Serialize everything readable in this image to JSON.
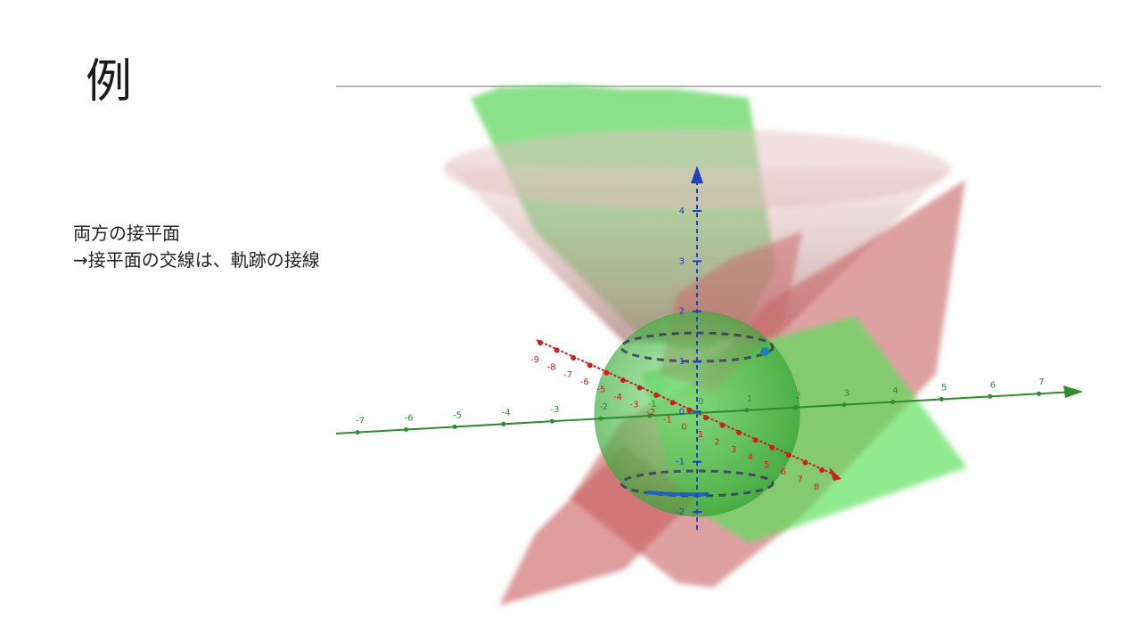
{
  "slide": {
    "title": "例",
    "lines": [
      "両方の接平面",
      "→接平面の交線は、軌跡の接線"
    ]
  },
  "figure": {
    "colors": {
      "x_axis": "#2e8b2e",
      "y_axis": "#cc1f1f",
      "z_axis": "#1f3fc4",
      "green_surface": "#5fd35f",
      "red_surface": "#c87878",
      "sphere": "#4cbf4c"
    },
    "x_axis_ticks": [
      "-7",
      "-6",
      "-5",
      "-4",
      "-3",
      "-2",
      "-1",
      "0",
      "1",
      "2",
      "3",
      "4",
      "5",
      "6",
      "7"
    ],
    "y_axis_ticks": [
      "-9",
      "-8",
      "-7",
      "-6",
      "-5",
      "-4",
      "-3",
      "-2",
      "-1",
      "0",
      "1",
      "2",
      "3",
      "4",
      "5",
      "6",
      "7",
      "8"
    ],
    "z_axis_ticks": [
      "4",
      "3",
      "2",
      "1",
      "0",
      "-1",
      "-2"
    ]
  }
}
